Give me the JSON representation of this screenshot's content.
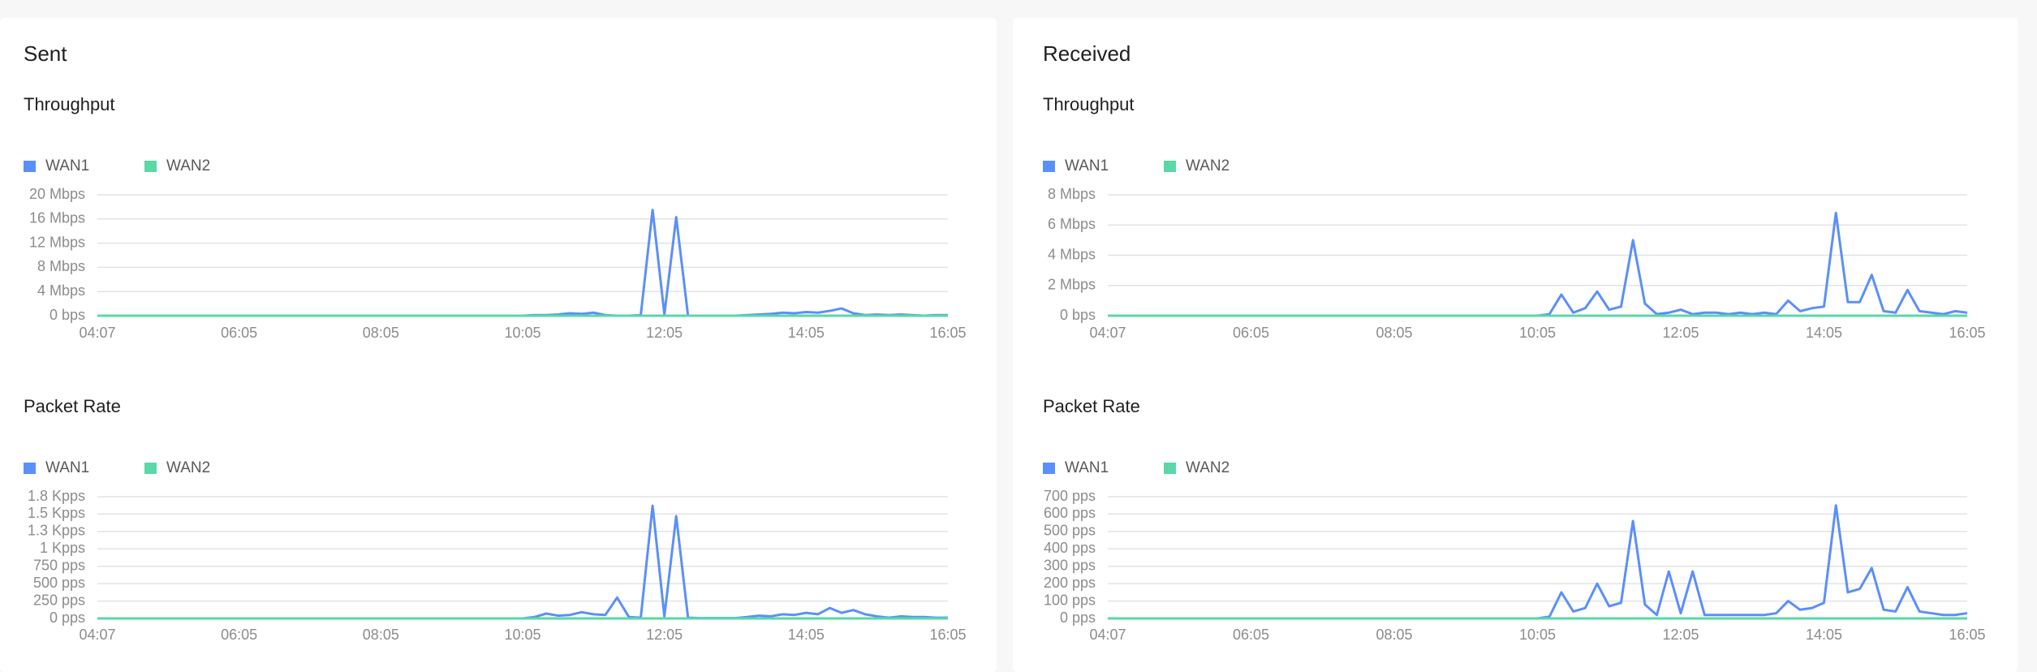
{
  "panels": [
    {
      "title": "Sent"
    },
    {
      "title": "Received"
    }
  ],
  "chart_data": [
    {
      "type": "line",
      "title": "Throughput",
      "legend": "top-left",
      "grid": true,
      "categories": [
        "04:07",
        null,
        null,
        null,
        null,
        null,
        null,
        null,
        null,
        null,
        null,
        null,
        "06:05",
        null,
        null,
        null,
        null,
        null,
        null,
        null,
        null,
        null,
        null,
        null,
        "08:05",
        null,
        null,
        null,
        null,
        null,
        null,
        null,
        null,
        null,
        null,
        null,
        "10:05",
        null,
        null,
        null,
        null,
        null,
        null,
        null,
        null,
        null,
        null,
        null,
        "12:05",
        null,
        null,
        null,
        null,
        null,
        null,
        null,
        null,
        null,
        null,
        null,
        "14:05",
        null,
        null,
        null,
        null,
        null,
        null,
        null,
        null,
        null,
        null,
        null,
        "16:05"
      ],
      "ylim": [
        0,
        20
      ],
      "yticks": [
        {
          "value": 0,
          "label": "0 bps"
        },
        {
          "value": 4,
          "label": "4 Mbps"
        },
        {
          "value": 8,
          "label": "8 Mbps"
        },
        {
          "value": 12,
          "label": "12 Mbps"
        },
        {
          "value": 16,
          "label": "16 Mbps"
        },
        {
          "value": 20,
          "label": "20 Mbps"
        }
      ],
      "series": [
        {
          "name": "WAN1",
          "color": "#5b8ff9",
          "values": [
            0,
            0,
            0,
            0,
            0,
            0,
            0,
            0,
            0,
            0,
            0,
            0,
            0,
            0,
            0,
            0,
            0,
            0,
            0,
            0,
            0,
            0,
            0,
            0,
            0,
            0,
            0,
            0,
            0,
            0,
            0,
            0,
            0,
            0,
            0,
            0,
            0,
            0.1,
            0.1,
            0.2,
            0.4,
            0.3,
            0.5,
            0.1,
            0,
            0,
            0.1,
            17.5,
            0.2,
            16.3,
            0,
            0,
            0,
            0,
            0,
            0.1,
            0.2,
            0.3,
            0.5,
            0.4,
            0.6,
            0.5,
            0.8,
            1.2,
            0.4,
            0.1,
            0.2,
            0.1,
            0.2,
            0.1,
            0,
            0.1,
            0.1
          ]
        },
        {
          "name": "WAN2",
          "color": "#5ad8a6",
          "values": [
            0,
            0,
            0,
            0,
            0,
            0,
            0,
            0,
            0,
            0,
            0,
            0,
            0,
            0,
            0,
            0,
            0,
            0,
            0,
            0,
            0,
            0,
            0,
            0,
            0,
            0,
            0,
            0,
            0,
            0,
            0,
            0,
            0,
            0,
            0,
            0,
            0,
            0,
            0,
            0,
            0,
            0,
            0,
            0,
            0,
            0,
            0,
            0,
            0,
            0,
            0,
            0,
            0,
            0,
            0,
            0,
            0,
            0,
            0,
            0,
            0,
            0,
            0,
            0,
            0,
            0,
            0,
            0,
            0,
            0,
            0,
            0,
            0
          ]
        }
      ]
    },
    {
      "type": "line",
      "title": "Throughput",
      "legend": "top-left",
      "grid": true,
      "categories": [
        "04:07",
        null,
        null,
        null,
        null,
        null,
        null,
        null,
        null,
        null,
        null,
        null,
        "06:05",
        null,
        null,
        null,
        null,
        null,
        null,
        null,
        null,
        null,
        null,
        null,
        "08:05",
        null,
        null,
        null,
        null,
        null,
        null,
        null,
        null,
        null,
        null,
        null,
        "10:05",
        null,
        null,
        null,
        null,
        null,
        null,
        null,
        null,
        null,
        null,
        null,
        "12:05",
        null,
        null,
        null,
        null,
        null,
        null,
        null,
        null,
        null,
        null,
        null,
        "14:05",
        null,
        null,
        null,
        null,
        null,
        null,
        null,
        null,
        null,
        null,
        null,
        "16:05"
      ],
      "ylim": [
        0,
        8
      ],
      "yticks": [
        {
          "value": 0,
          "label": "0 bps"
        },
        {
          "value": 2,
          "label": "2 Mbps"
        },
        {
          "value": 4,
          "label": "4 Mbps"
        },
        {
          "value": 6,
          "label": "6 Mbps"
        },
        {
          "value": 8,
          "label": "8 Mbps"
        }
      ],
      "series": [
        {
          "name": "WAN1",
          "color": "#5b8ff9",
          "values": [
            0,
            0,
            0,
            0,
            0,
            0,
            0,
            0,
            0,
            0,
            0,
            0,
            0,
            0,
            0,
            0,
            0,
            0,
            0,
            0,
            0,
            0,
            0,
            0,
            0,
            0,
            0,
            0,
            0,
            0,
            0,
            0,
            0,
            0,
            0,
            0,
            0,
            0.1,
            1.4,
            0.2,
            0.5,
            1.6,
            0.4,
            0.6,
            5.0,
            0.8,
            0.1,
            0.2,
            0.4,
            0.1,
            0.2,
            0.2,
            0.1,
            0.2,
            0.1,
            0.2,
            0.1,
            1.0,
            0.3,
            0.5,
            0.6,
            6.8,
            0.9,
            0.9,
            2.7,
            0.3,
            0.2,
            1.7,
            0.3,
            0.2,
            0.1,
            0.3,
            0.2
          ]
        },
        {
          "name": "WAN2",
          "color": "#5ad8a6",
          "values": [
            0,
            0,
            0,
            0,
            0,
            0,
            0,
            0,
            0,
            0,
            0,
            0,
            0,
            0,
            0,
            0,
            0,
            0,
            0,
            0,
            0,
            0,
            0,
            0,
            0,
            0,
            0,
            0,
            0,
            0,
            0,
            0,
            0,
            0,
            0,
            0,
            0,
            0,
            0,
            0,
            0,
            0,
            0,
            0,
            0,
            0,
            0,
            0,
            0,
            0,
            0,
            0,
            0,
            0,
            0,
            0,
            0,
            0,
            0,
            0,
            0,
            0,
            0,
            0,
            0,
            0,
            0,
            0,
            0,
            0,
            0,
            0,
            0
          ]
        }
      ]
    },
    {
      "type": "line",
      "title": "Packet Rate",
      "legend": "top-left",
      "grid": true,
      "categories": [
        "04:07",
        null,
        null,
        null,
        null,
        null,
        null,
        null,
        null,
        null,
        null,
        null,
        "06:05",
        null,
        null,
        null,
        null,
        null,
        null,
        null,
        null,
        null,
        null,
        null,
        "08:05",
        null,
        null,
        null,
        null,
        null,
        null,
        null,
        null,
        null,
        null,
        null,
        "10:05",
        null,
        null,
        null,
        null,
        null,
        null,
        null,
        null,
        null,
        null,
        null,
        "12:05",
        null,
        null,
        null,
        null,
        null,
        null,
        null,
        null,
        null,
        null,
        null,
        "14:05",
        null,
        null,
        null,
        null,
        null,
        null,
        null,
        null,
        null,
        null,
        null,
        "16:05"
      ],
      "ylim": [
        0,
        1750
      ],
      "yticks": [
        {
          "value": 0,
          "label": "0 pps"
        },
        {
          "value": 250,
          "label": "250 pps"
        },
        {
          "value": 500,
          "label": "500 pps"
        },
        {
          "value": 750,
          "label": "750 pps"
        },
        {
          "value": 1000,
          "label": "1 Kpps"
        },
        {
          "value": 1250,
          "label": "1.3 Kpps"
        },
        {
          "value": 1500,
          "label": "1.5 Kpps"
        },
        {
          "value": 1750,
          "label": "1.8 Kpps"
        }
      ],
      "series": [
        {
          "name": "WAN1",
          "color": "#5b8ff9",
          "values": [
            0,
            0,
            0,
            0,
            0,
            0,
            0,
            0,
            0,
            0,
            0,
            0,
            0,
            0,
            0,
            0,
            0,
            0,
            0,
            0,
            0,
            0,
            0,
            0,
            0,
            0,
            0,
            0,
            0,
            0,
            0,
            0,
            0,
            0,
            0,
            0,
            0,
            20,
            70,
            40,
            50,
            90,
            60,
            50,
            300,
            20,
            10,
            1620,
            30,
            1470,
            10,
            5,
            5,
            5,
            5,
            20,
            40,
            30,
            60,
            50,
            80,
            60,
            150,
            80,
            120,
            60,
            30,
            10,
            30,
            20,
            20,
            10,
            10
          ]
        },
        {
          "name": "WAN2",
          "color": "#5ad8a6",
          "values": [
            0,
            0,
            0,
            0,
            0,
            0,
            0,
            0,
            0,
            0,
            0,
            0,
            0,
            0,
            0,
            0,
            0,
            0,
            0,
            0,
            0,
            0,
            0,
            0,
            0,
            0,
            0,
            0,
            0,
            0,
            0,
            0,
            0,
            0,
            0,
            0,
            0,
            0,
            0,
            0,
            0,
            0,
            0,
            0,
            0,
            0,
            0,
            0,
            0,
            0,
            0,
            0,
            0,
            0,
            0,
            0,
            0,
            0,
            0,
            0,
            0,
            0,
            0,
            0,
            0,
            0,
            0,
            0,
            0,
            0,
            0,
            0,
            0
          ]
        }
      ]
    },
    {
      "type": "line",
      "title": "Packet Rate",
      "legend": "top-left",
      "grid": true,
      "categories": [
        "04:07",
        null,
        null,
        null,
        null,
        null,
        null,
        null,
        null,
        null,
        null,
        null,
        "06:05",
        null,
        null,
        null,
        null,
        null,
        null,
        null,
        null,
        null,
        null,
        null,
        "08:05",
        null,
        null,
        null,
        null,
        null,
        null,
        null,
        null,
        null,
        null,
        null,
        "10:05",
        null,
        null,
        null,
        null,
        null,
        null,
        null,
        null,
        null,
        null,
        null,
        "12:05",
        null,
        null,
        null,
        null,
        null,
        null,
        null,
        null,
        null,
        null,
        null,
        "14:05",
        null,
        null,
        null,
        null,
        null,
        null,
        null,
        null,
        null,
        null,
        null,
        "16:05"
      ],
      "ylim": [
        0,
        700
      ],
      "yticks": [
        {
          "value": 0,
          "label": "0 pps"
        },
        {
          "value": 100,
          "label": "100 pps"
        },
        {
          "value": 200,
          "label": "200 pps"
        },
        {
          "value": 300,
          "label": "300 pps"
        },
        {
          "value": 400,
          "label": "400 pps"
        },
        {
          "value": 500,
          "label": "500 pps"
        },
        {
          "value": 600,
          "label": "600 pps"
        },
        {
          "value": 700,
          "label": "700 pps"
        }
      ],
      "series": [
        {
          "name": "WAN1",
          "color": "#5b8ff9",
          "values": [
            0,
            0,
            0,
            0,
            0,
            0,
            0,
            0,
            0,
            0,
            0,
            0,
            0,
            0,
            0,
            0,
            0,
            0,
            0,
            0,
            0,
            0,
            0,
            0,
            0,
            0,
            0,
            0,
            0,
            0,
            0,
            0,
            0,
            0,
            0,
            0,
            0,
            10,
            150,
            40,
            60,
            200,
            70,
            90,
            560,
            80,
            20,
            270,
            30,
            270,
            20,
            20,
            20,
            20,
            20,
            20,
            30,
            100,
            50,
            60,
            90,
            650,
            150,
            170,
            290,
            50,
            40,
            180,
            40,
            30,
            20,
            20,
            30
          ]
        },
        {
          "name": "WAN2",
          "color": "#5ad8a6",
          "values": [
            0,
            0,
            0,
            0,
            0,
            0,
            0,
            0,
            0,
            0,
            0,
            0,
            0,
            0,
            0,
            0,
            0,
            0,
            0,
            0,
            0,
            0,
            0,
            0,
            0,
            0,
            0,
            0,
            0,
            0,
            0,
            0,
            0,
            0,
            0,
            0,
            0,
            0,
            0,
            0,
            0,
            0,
            0,
            0,
            0,
            0,
            0,
            0,
            0,
            0,
            0,
            0,
            0,
            0,
            0,
            0,
            0,
            0,
            0,
            0,
            0,
            0,
            0,
            0,
            0,
            0,
            0,
            0,
            0,
            0,
            0,
            0,
            0
          ]
        }
      ]
    }
  ]
}
